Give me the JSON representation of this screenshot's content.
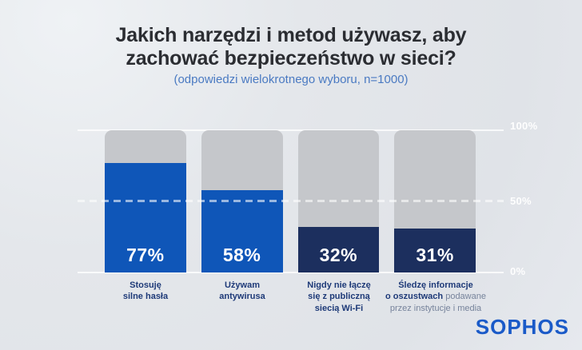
{
  "header": {
    "title": "Jakich narzędzi i metod używasz, aby\nzachować bezpieczeństwo w sieci?",
    "subtitle": "(odpowiedzi wielokrotnego wyboru, n=1000)"
  },
  "chart_data": {
    "type": "bar",
    "title": "Jakich narzędzi i metod używasz, aby zachować bezpieczeństwo w sieci?",
    "subtitle": "(odpowiedzi wielokrotnego wyboru, n=1000)",
    "xlabel": "",
    "ylabel": "",
    "ylim": [
      0,
      100
    ],
    "yticks_pct": [
      0,
      50,
      100
    ],
    "reference_line_pct": 50,
    "legend": "none",
    "grid": "white lines at 0% and 100%, dashed white line at 50%",
    "categories": [
      "Stosuję silne hasła",
      "Używam antywirusa",
      "Nigdy nie łączę się z publiczną siecią Wi-Fi",
      "Śledzę informacje o oszustwach podawane przez instytucje i media"
    ],
    "values": [
      77,
      58,
      32,
      31
    ],
    "track_color": "#c5c7cb",
    "bars": [
      {
        "value": 77,
        "label": "77%",
        "color": "#0f56b8",
        "caption_strong": "Stosuję\nsilne hasła",
        "caption_light": ""
      },
      {
        "value": 58,
        "label": "58%",
        "color": "#0f56b8",
        "caption_strong": "Używam\nantywirusa",
        "caption_light": ""
      },
      {
        "value": 32,
        "label": "32%",
        "color": "#1c2f5e",
        "caption_strong": "Nigdy nie łączę\nsię z publiczną\nsiecią Wi-Fi",
        "caption_light": ""
      },
      {
        "value": 31,
        "label": "31%",
        "color": "#1c2f5e",
        "caption_strong": "Śledzę informacje\no oszustwach ",
        "caption_light": "podawane\nprzez instytucje i media"
      }
    ]
  },
  "axis": {
    "yticks": [
      {
        "label": "100%"
      },
      {
        "label": "50%"
      },
      {
        "label": "0%"
      }
    ]
  },
  "branding": {
    "logo_text": "SOPHOS",
    "logo_color": "#1a5ac8"
  },
  "colors": {
    "background": "#e3e6ea",
    "title_text": "#2b2d32",
    "subtitle_text": "#4a7ac2",
    "bar_blue": "#0f56b8",
    "bar_navy": "#1c2f5e",
    "bar_track_gray": "#c5c7cb",
    "caption_strong_text": "#1e3a78",
    "caption_light_text": "#76839b",
    "axis_tick_text": "#ffffff"
  }
}
